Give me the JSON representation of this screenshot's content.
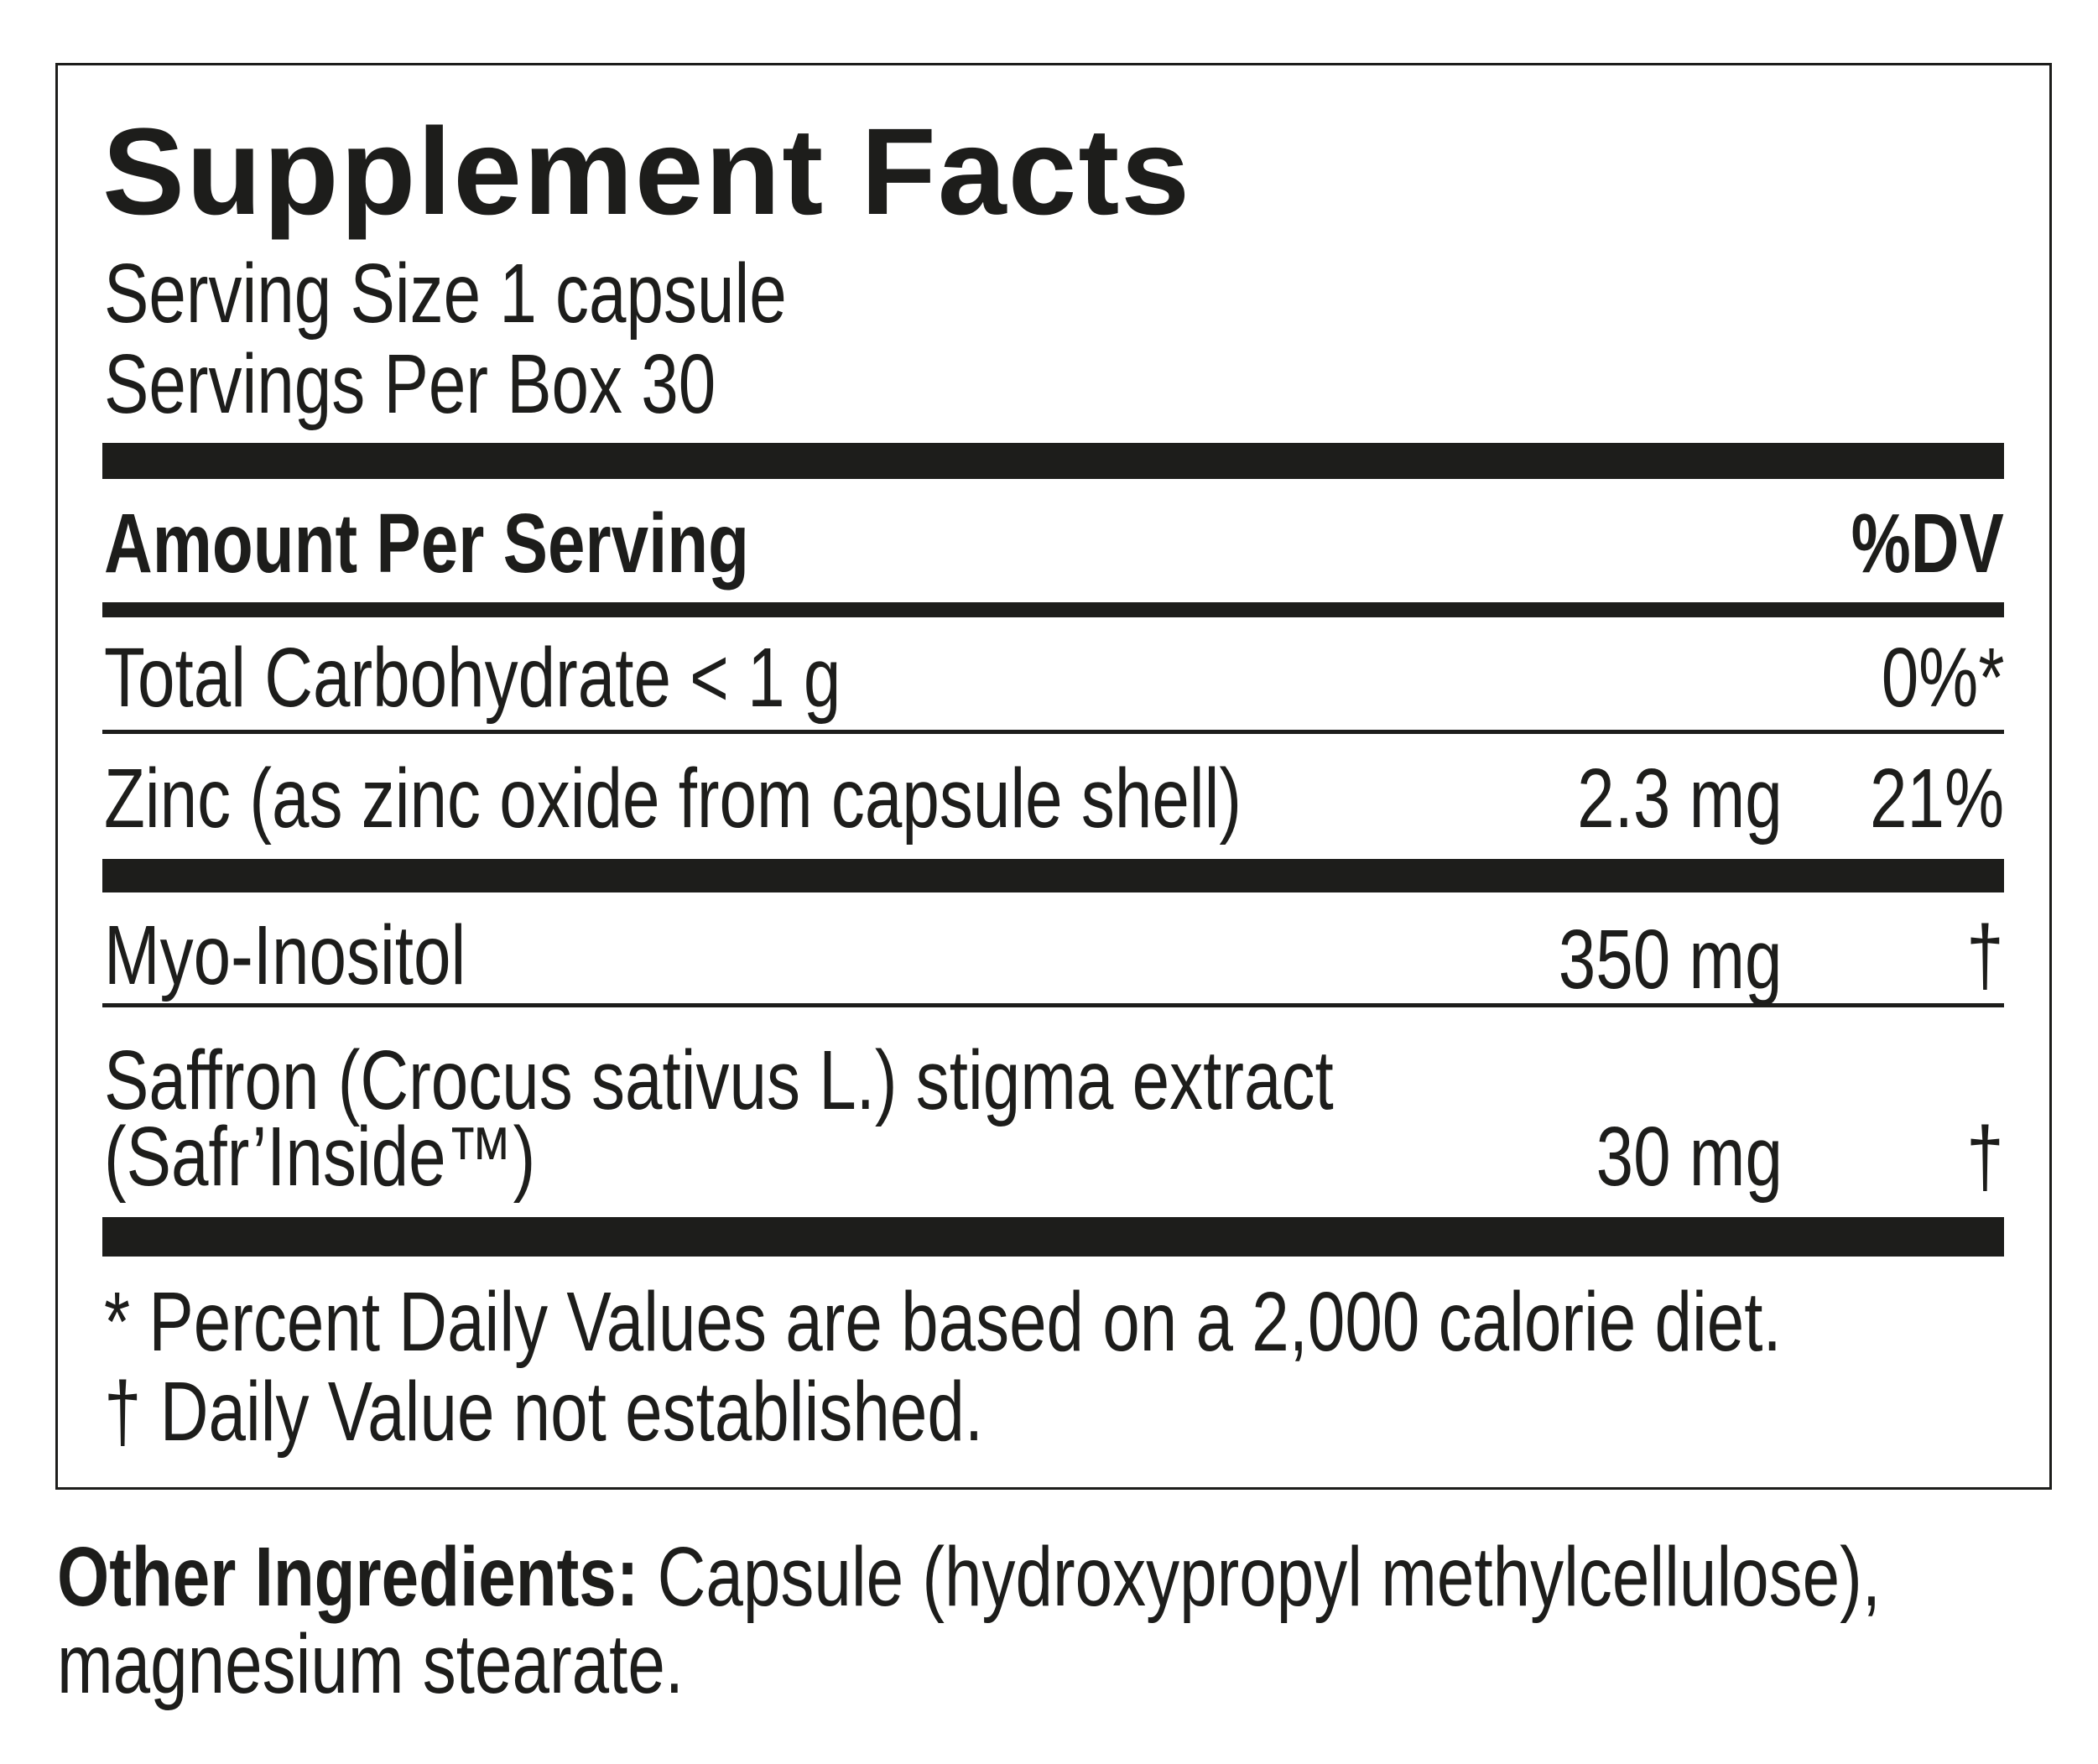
{
  "title": "Supplement Facts",
  "serving_size": "Serving Size 1 capsule",
  "servings_per_container": "Servings Per Box 30",
  "header": {
    "amount_label": "Amount Per Serving",
    "dv_label": "%DV"
  },
  "rows": [
    {
      "name": "Total Carbohydrate < 1 g",
      "amount": "",
      "dv": "0%*"
    },
    {
      "name": "Zinc (as zinc oxide from capsule shell)",
      "amount": "2.3 mg",
      "dv": "21%"
    },
    {
      "name": "Myo-Inositol",
      "amount": "350 mg",
      "dv": "†"
    },
    {
      "name_line1": "Saffron (Crocus sativus L.) stigma extract",
      "name_line2": "(Safr’Inside™)",
      "amount": "30 mg",
      "dv": "†"
    }
  ],
  "footnotes": [
    "* Percent Daily Values are based on a 2,000 calorie diet.",
    "† Daily Value not established."
  ],
  "other_ingredients": {
    "label": "Other Ingredients:",
    "text_line1": " Capsule (hydroxypropyl methylcellulose),",
    "text_line2": "magnesium stearate."
  }
}
